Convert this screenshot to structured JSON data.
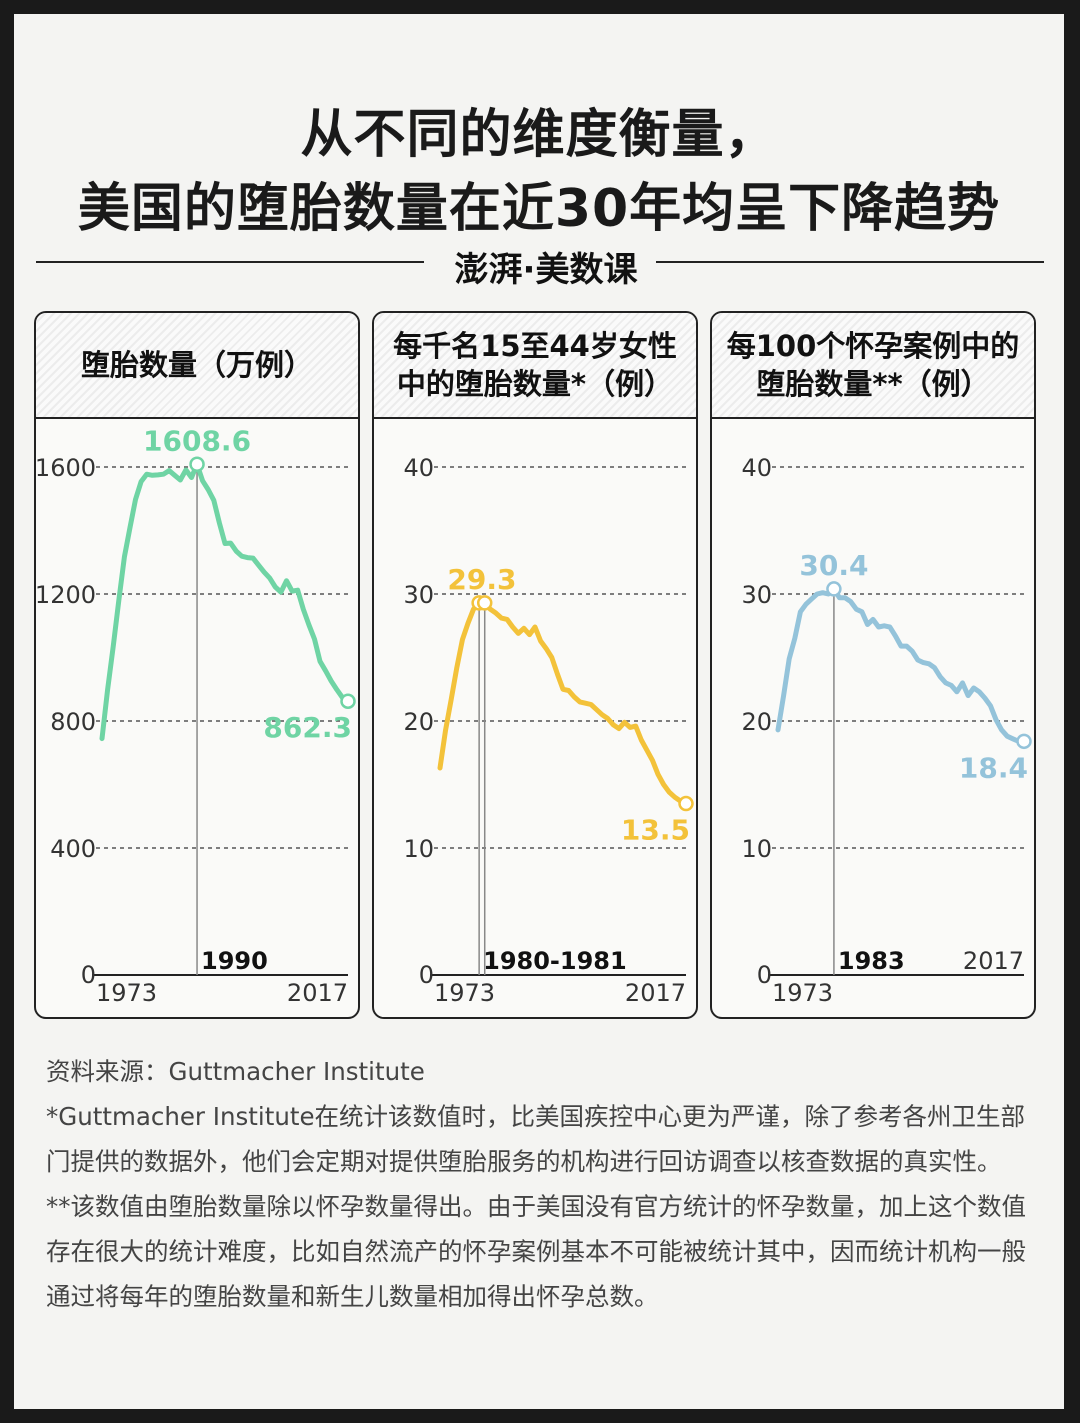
{
  "title_line1": "从不同的维度衡量，",
  "title_line2": "美国的堕胎数量在近30年均呈下降趋势",
  "brand": "澎湃·美数课",
  "colors": {
    "green": "#6fd4a4",
    "yellow": "#f3c23a",
    "blue": "#94c3da",
    "ink": "#222222"
  },
  "panels": [
    {
      "title_lines": [
        "堕胎数量（万例）"
      ]
    },
    {
      "title_lines": [
        "每千名15至44岁女性",
        "中的堕胎数量*（例）"
      ]
    },
    {
      "title_lines": [
        "每100个怀孕案例中的",
        "堕胎数量**（例）"
      ]
    }
  ],
  "chart_data": [
    {
      "type": "line",
      "x": [
        1973,
        1974,
        1975,
        1976,
        1977,
        1978,
        1979,
        1980,
        1981,
        1982,
        1983,
        1984,
        1985,
        1986,
        1987,
        1988,
        1989,
        1990,
        1991,
        1992,
        1993,
        1994,
        1995,
        1996,
        1997,
        1998,
        1999,
        2000,
        2001,
        2002,
        2003,
        2004,
        2005,
        2006,
        2007,
        2008,
        2009,
        2010,
        2011,
        2012,
        2013,
        2014,
        2015,
        2016,
        2017
      ],
      "values": [
        744.6,
        898.6,
        1034.2,
        1179.3,
        1316.7,
        1409.6,
        1497.7,
        1553.9,
        1577.3,
        1573.9,
        1575,
        1577.2,
        1588.6,
        1574,
        1559.1,
        1590.8,
        1566.9,
        1608.6,
        1556.5,
        1528.9,
        1495,
        1423.5,
        1359,
        1360.2,
        1335,
        1319,
        1314.8,
        1313,
        1291,
        1269,
        1250,
        1222,
        1206,
        1242,
        1209,
        1212,
        1152,
        1103,
        1058,
        988,
        958,
        926,
        899,
        874,
        862.3
      ],
      "ylim": [
        0,
        1600
      ],
      "yticks": [
        "0",
        "400",
        "800",
        "1200",
        "1600"
      ],
      "ytick_values": [
        0,
        400,
        800,
        1200,
        1600
      ],
      "x_start_label": "1973",
      "x_end_label": "2017",
      "peak": {
        "label": "1990",
        "value_label": "1608.6",
        "x": 1990,
        "y": 1608.6
      },
      "end": {
        "value_label": "862.3",
        "x": 2017,
        "y": 862.3
      },
      "color": "#6fd4a4"
    },
    {
      "type": "line",
      "x": [
        1973,
        1974,
        1975,
        1976,
        1977,
        1978,
        1979,
        1980,
        1981,
        1982,
        1983,
        1984,
        1985,
        1986,
        1987,
        1988,
        1989,
        1990,
        1991,
        1992,
        1993,
        1994,
        1995,
        1996,
        1997,
        1998,
        1999,
        2000,
        2001,
        2002,
        2003,
        2004,
        2005,
        2006,
        2007,
        2008,
        2009,
        2010,
        2011,
        2012,
        2013,
        2014,
        2015,
        2016,
        2017
      ],
      "values": [
        16.3,
        19.3,
        21.7,
        24.2,
        26.4,
        27.7,
        28.8,
        29.3,
        29.3,
        28.8,
        28.5,
        28.1,
        28,
        27.4,
        26.9,
        27.3,
        26.8,
        27.4,
        26.3,
        25.7,
        25.0,
        23.7,
        22.5,
        22.4,
        21.9,
        21.5,
        21.4,
        21.3,
        20.9,
        20.5,
        20.2,
        19.7,
        19.4,
        19.9,
        19.5,
        19.6,
        18.5,
        17.7,
        16.9,
        15.8,
        15.0,
        14.4,
        14.0,
        13.7,
        13.5
      ],
      "ylim": [
        0,
        40
      ],
      "yticks": [
        "0",
        "10",
        "20",
        "30",
        "40"
      ],
      "ytick_values": [
        0,
        10,
        20,
        30,
        40
      ],
      "x_start_label": "1973",
      "x_end_label": "2017",
      "peak": {
        "label": "1980-1981",
        "value_label": "29.3",
        "x": 1980,
        "x2": 1981,
        "y": 29.3
      },
      "end": {
        "value_label": "13.5",
        "x": 2017,
        "y": 13.5
      },
      "color": "#f3c23a"
    },
    {
      "type": "line",
      "x": [
        1973,
        1974,
        1975,
        1976,
        1977,
        1978,
        1979,
        1980,
        1981,
        1982,
        1983,
        1984,
        1985,
        1986,
        1987,
        1988,
        1989,
        1990,
        1991,
        1992,
        1993,
        1994,
        1995,
        1996,
        1997,
        1998,
        1999,
        2000,
        2001,
        2002,
        2003,
        2004,
        2005,
        2006,
        2007,
        2008,
        2009,
        2010,
        2011,
        2012,
        2013,
        2014,
        2015,
        2016,
        2017
      ],
      "values": [
        19.3,
        22.0,
        24.9,
        26.5,
        28.6,
        29.2,
        29.6,
        30.0,
        30.1,
        30.0,
        30.4,
        29.7,
        29.7,
        29.4,
        28.8,
        28.6,
        27.6,
        28.0,
        27.4,
        27.5,
        27.4,
        26.7,
        25.9,
        25.9,
        25.5,
        24.8,
        24.6,
        24.5,
        24.2,
        23.5,
        23.0,
        22.8,
        22.3,
        23.0,
        22.0,
        22.6,
        22.3,
        21.8,
        21.2,
        20.1,
        19.3,
        18.8,
        18.6,
        18.4,
        18.4
      ],
      "ylim": [
        0,
        40
      ],
      "yticks": [
        "0",
        "10",
        "20",
        "30",
        "40"
      ],
      "ytick_values": [
        0,
        10,
        20,
        30,
        40
      ],
      "x_start_label": "1973",
      "x_end_label": "2017",
      "peak": {
        "label": "1983",
        "value_label": "30.4",
        "x": 1983,
        "y": 30.4
      },
      "end": {
        "value_label": "18.4",
        "x": 2017,
        "y": 18.4
      },
      "color": "#94c3da"
    }
  ],
  "notes": {
    "source": "资料来源：Guttmacher Institute",
    "note1": "*Guttmacher Institute在统计该数值时，比美国疾控中心更为严谨，除了参考各州卫生部门提供的数据外，他们会定期对提供堕胎服务的机构进行回访调查以核查数据的真实性。",
    "note2": "**该数值由堕胎数量除以怀孕数量得出。由于美国没有官方统计的怀孕数量，加上这个数值存在很大的统计难度，比如自然流产的怀孕案例基本不可能被统计其中，因而统计机构一般通过将每年的堕胎数量和新生儿数量相加得出怀孕总数。"
  }
}
